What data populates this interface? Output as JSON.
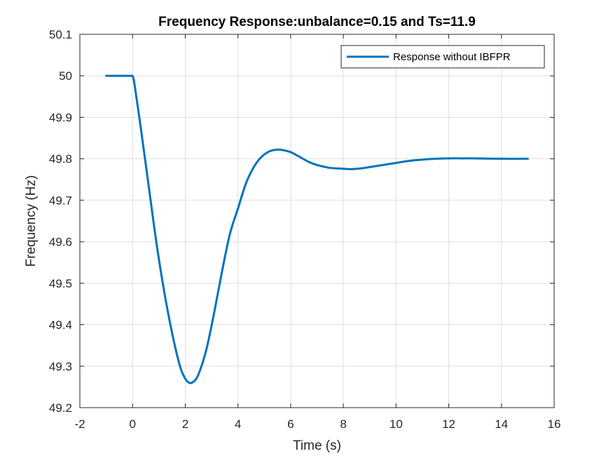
{
  "chart_data": {
    "type": "line",
    "title": "Frequency Response:unbalance=0.15 and Ts=11.9",
    "xlabel": "Time (s)",
    "ylabel": "Frequency (Hz)",
    "xlim": [
      -2,
      16
    ],
    "ylim": [
      49.2,
      50.1
    ],
    "xticks": [
      -2,
      0,
      2,
      4,
      6,
      8,
      10,
      12,
      14,
      16
    ],
    "xtick_labels": [
      "-2",
      "0",
      "2",
      "4",
      "6",
      "8",
      "10",
      "12",
      "14",
      "16"
    ],
    "yticks": [
      49.2,
      49.3,
      49.4,
      49.5,
      49.6,
      49.7,
      49.8,
      49.9,
      50.0,
      50.1
    ],
    "ytick_labels": [
      "49.2",
      "49.3",
      "49.4",
      "49.5",
      "49.6",
      "49.7",
      "49.8",
      "49.9",
      "50",
      "50.1"
    ],
    "grid": true,
    "legend_position": "top-right",
    "series": [
      {
        "name": "Response without IBFPR",
        "color": "#0072BD",
        "x": [
          -1.0,
          0.0,
          0.05,
          0.3,
          0.6,
          0.9,
          1.2,
          1.5,
          1.8,
          2.0,
          2.15,
          2.3,
          2.5,
          2.8,
          3.1,
          3.4,
          3.7,
          4.0,
          4.3,
          4.6,
          4.9,
          5.2,
          5.5,
          5.7,
          6.0,
          6.3,
          6.7,
          7.0,
          7.5,
          8.0,
          8.3,
          8.7,
          9.0,
          9.5,
          10.0,
          10.5,
          11.0,
          11.5,
          12.0,
          12.5,
          13.0,
          14.0,
          15.0
        ],
        "y": [
          50.0,
          50.0,
          49.99,
          49.88,
          49.74,
          49.6,
          49.48,
          49.38,
          49.3,
          49.27,
          49.26,
          49.262,
          49.28,
          49.34,
          49.43,
          49.53,
          49.62,
          49.68,
          49.74,
          49.78,
          49.805,
          49.818,
          49.822,
          49.821,
          49.816,
          49.806,
          49.792,
          49.785,
          49.778,
          49.776,
          49.775,
          49.777,
          49.78,
          49.785,
          49.79,
          49.795,
          49.798,
          49.8,
          49.801,
          49.801,
          49.801,
          49.8,
          49.8
        ]
      }
    ]
  }
}
